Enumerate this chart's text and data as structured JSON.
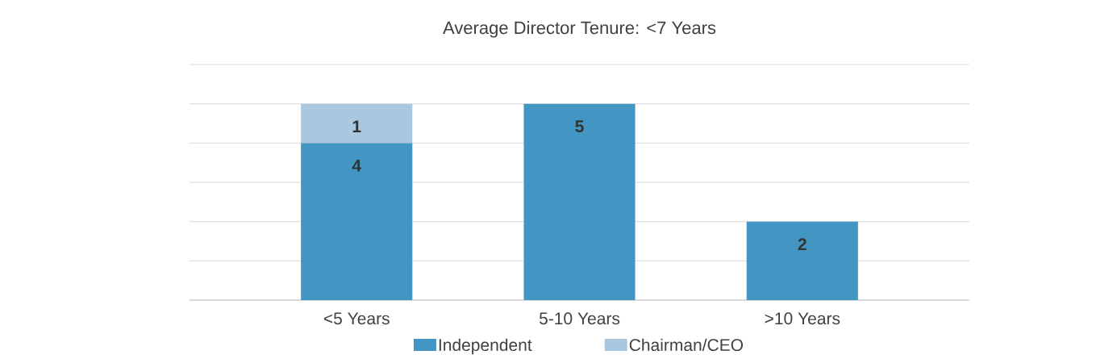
{
  "chart_data": {
    "type": "bar",
    "title": "Average Director Tenure: <7 Years",
    "categories": [
      "<5 Years",
      "5-10 Years",
      ">10 Years"
    ],
    "stacked": true,
    "series": [
      {
        "name": "Independent",
        "color": "#4396c3",
        "values": [
          4,
          5,
          2
        ]
      },
      {
        "name": "Chairman/CEO",
        "color": "#aac7e0",
        "values": [
          1,
          null,
          null
        ]
      }
    ],
    "ylim": [
      0,
      6
    ],
    "yticks": [
      0,
      1,
      2,
      3,
      4,
      5,
      6
    ],
    "grid": "y",
    "tick_labels": "x",
    "legend": "bottom",
    "data_labels": true
  }
}
